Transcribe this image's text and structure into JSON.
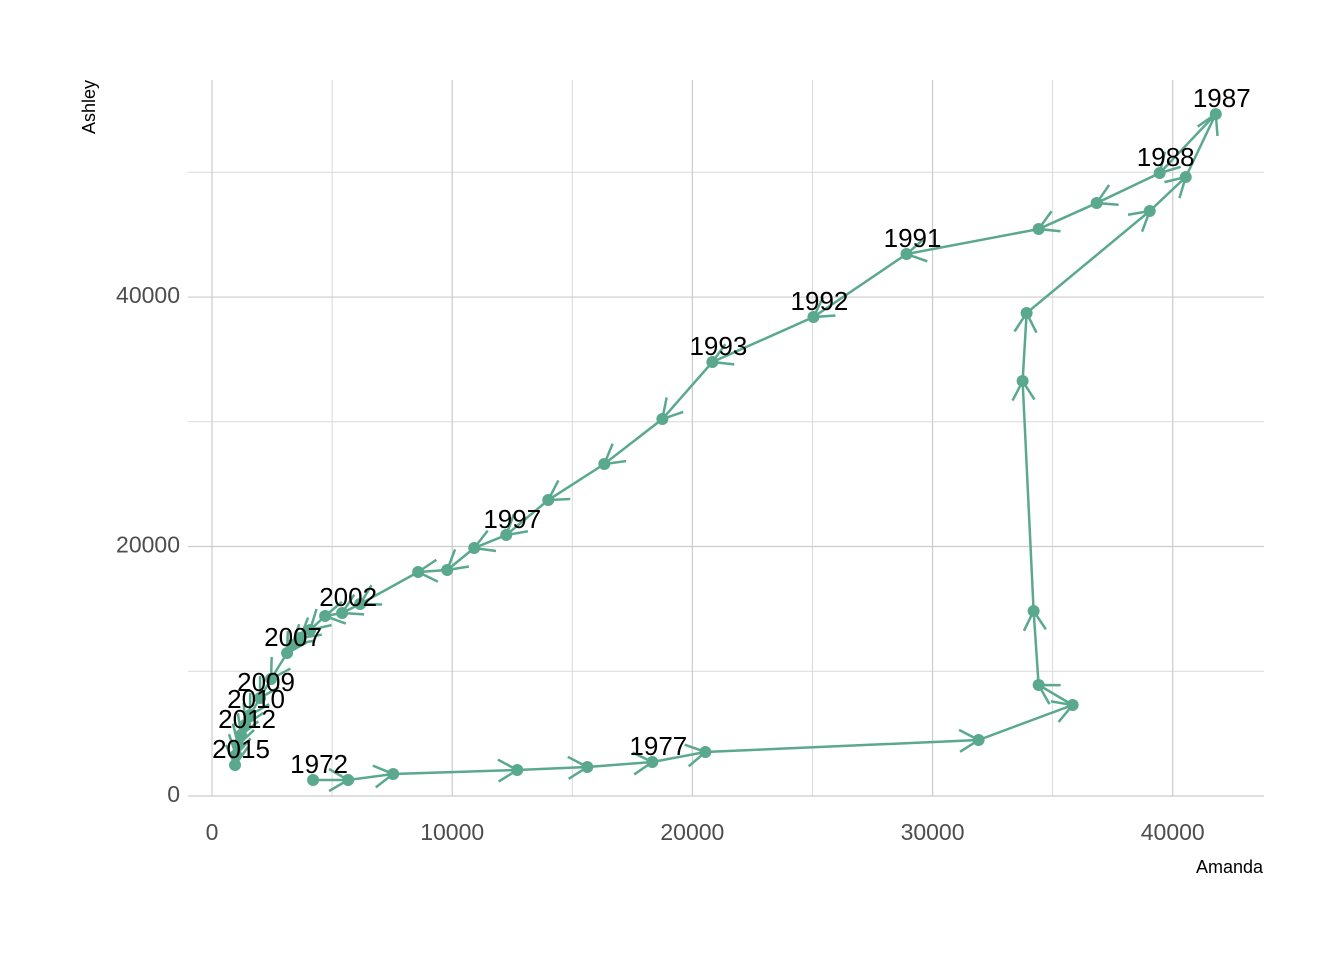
{
  "chart_data": {
    "type": "connected_scatter",
    "x_label": "Amanda",
    "y_label": "Ashley",
    "color": "#5aa98e",
    "x": [
      4208,
      5667,
      7542,
      12708,
      15625,
      18333,
      20542,
      31917,
      35833,
      34417,
      34208,
      33750,
      33917,
      39042,
      40542,
      41792,
      39458,
      36833,
      34417,
      28917,
      25042,
      20833,
      18750,
      16333,
      14000,
      12250,
      10917,
      9792,
      8583,
      6167,
      5417,
      4708,
      4083,
      3667,
      3333,
      3125,
      2458,
      2000,
      1583,
      1375,
      1208,
      1083,
      1000,
      958
    ],
    "y": [
      1283,
      1283,
      1764,
      2084,
      2325,
      2725,
      3527,
      4489,
      7295,
      8898,
      14830,
      33267,
      38717,
      46894,
      49619,
      54669,
      49940,
      47535,
      45451,
      43447,
      38397,
      34790,
      30220,
      26613,
      23727,
      20922,
      19880,
      18116,
      17956,
      15391,
      14669,
      14429,
      13307,
      12665,
      12104,
      11463,
      9379,
      7856,
      6493,
      5691,
      4890,
      4088,
      3287,
      2485
    ],
    "point_labels": [
      "1972",
      null,
      null,
      null,
      null,
      "1977",
      null,
      null,
      null,
      null,
      null,
      null,
      null,
      null,
      null,
      "1987",
      "1988",
      null,
      null,
      "1991",
      "1992",
      "1993",
      null,
      null,
      null,
      "1997",
      null,
      null,
      null,
      null,
      "2002",
      null,
      null,
      null,
      null,
      "2007",
      null,
      "2009",
      "2010",
      null,
      "2012",
      null,
      null,
      "2015"
    ],
    "xlim": [
      -1000,
      43800
    ],
    "ylim": [
      0,
      57400
    ],
    "xticks": [
      0,
      10000,
      20000,
      30000,
      40000
    ],
    "yticks": [
      0,
      20000,
      40000
    ],
    "x_minor_grid": [
      5000,
      15000,
      25000,
      35000
    ],
    "y_minor_grid": [
      10000,
      30000,
      50000
    ],
    "grid": true
  }
}
